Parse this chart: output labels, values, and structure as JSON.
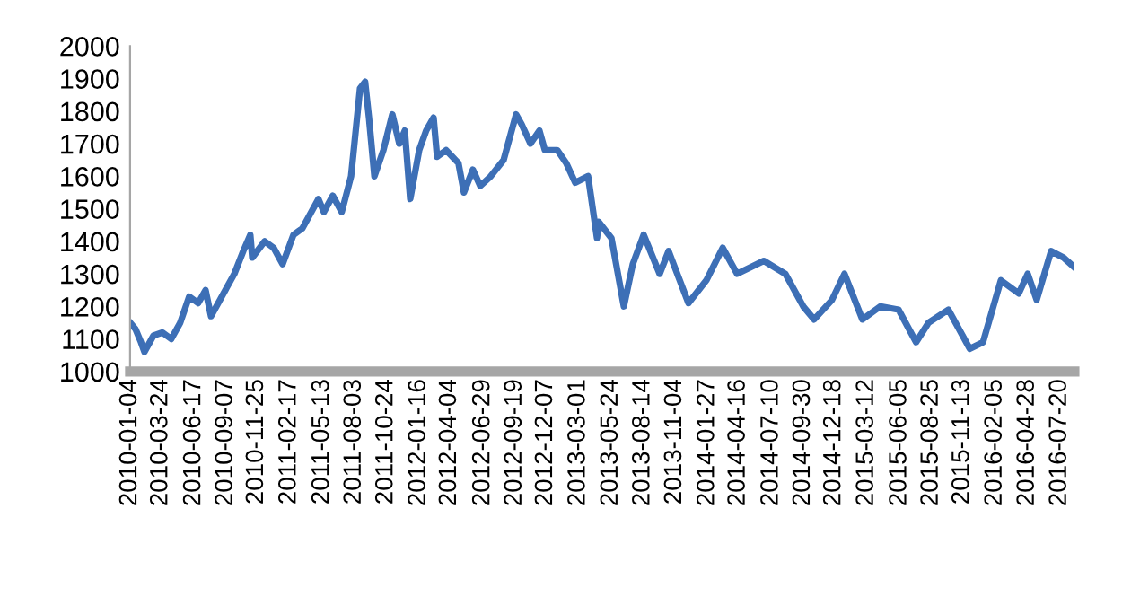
{
  "chart_data": {
    "type": "line",
    "x": [
      "2010-01-04",
      "2010-01-18",
      "2010-02-01",
      "2010-02-10",
      "2010-03-05",
      "2010-03-28",
      "2010-04-20",
      "2010-05-13",
      "2010-06-05",
      "2010-06-28",
      "2010-07-17",
      "2010-07-31",
      "2010-09-29",
      "2010-10-22",
      "2010-11-09",
      "2010-11-14",
      "2010-12-16",
      "2011-01-08",
      "2011-01-31",
      "2011-02-28",
      "2011-03-23",
      "2011-05-03",
      "2011-05-17",
      "2011-06-09",
      "2011-07-02",
      "2011-07-26",
      "2011-08-18",
      "2011-08-31",
      "2011-09-10",
      "2011-09-24",
      "2011-10-17",
      "2011-11-09",
      "2011-11-27",
      "2011-12-11",
      "2011-12-25",
      "2012-01-17",
      "2012-02-04",
      "2012-02-23",
      "2012-03-03",
      "2012-03-26",
      "2012-04-27",
      "2012-05-11",
      "2012-06-03",
      "2012-06-22",
      "2012-07-19",
      "2012-08-21",
      "2012-09-22",
      "2012-10-06",
      "2012-10-29",
      "2012-11-21",
      "2012-12-05",
      "2013-01-06",
      "2013-01-29",
      "2013-02-21",
      "2013-03-26",
      "2013-04-18",
      "2013-04-22",
      "2013-05-25",
      "2013-06-26",
      "2013-07-19",
      "2013-08-16",
      "2013-09-26",
      "2013-10-19",
      "2013-12-09",
      "2014-01-24",
      "2014-03-07",
      "2014-04-13",
      "2014-06-21",
      "2014-08-15",
      "2014-09-30",
      "2014-10-28",
      "2014-12-13",
      "2015-01-14",
      "2015-03-01",
      "2015-04-16",
      "2015-06-02",
      "2015-07-17",
      "2015-08-18",
      "2015-10-08",
      "2015-12-02",
      "2016-01-05",
      "2016-02-20",
      "2016-04-06",
      "2016-04-29",
      "2016-05-22",
      "2016-06-28",
      "2016-07-30",
      "2016-08-27"
    ],
    "values": [
      1150,
      1130,
      1090,
      1060,
      1110,
      1120,
      1100,
      1150,
      1230,
      1210,
      1250,
      1170,
      1300,
      1370,
      1420,
      1350,
      1400,
      1380,
      1330,
      1420,
      1440,
      1530,
      1490,
      1540,
      1490,
      1600,
      1870,
      1890,
      1780,
      1600,
      1680,
      1790,
      1700,
      1740,
      1530,
      1680,
      1740,
      1780,
      1660,
      1680,
      1640,
      1550,
      1620,
      1570,
      1600,
      1650,
      1790,
      1760,
      1700,
      1740,
      1680,
      1680,
      1640,
      1580,
      1600,
      1410,
      1460,
      1410,
      1200,
      1330,
      1420,
      1300,
      1370,
      1210,
      1280,
      1380,
      1300,
      1340,
      1300,
      1200,
      1160,
      1220,
      1300,
      1160,
      1200,
      1190,
      1090,
      1150,
      1190,
      1070,
      1090,
      1280,
      1240,
      1300,
      1220,
      1370,
      1350,
      1320
    ],
    "color": "#3d6fb6",
    "xlim": [
      "2010-01-04",
      "2016-08-27"
    ],
    "xticks": [
      "2010-01-04",
      "2010-03-24",
      "2010-06-17",
      "2010-09-07",
      "2010-11-25",
      "2011-02-17",
      "2011-05-13",
      "2011-08-03",
      "2011-10-24",
      "2012-01-16",
      "2012-04-04",
      "2012-06-29",
      "2012-09-19",
      "2012-12-07",
      "2013-03-01",
      "2013-05-24",
      "2013-08-14",
      "2013-11-04",
      "2014-01-27",
      "2014-04-16",
      "2014-07-10",
      "2014-09-30",
      "2014-12-18",
      "2015-03-12",
      "2015-06-05",
      "2015-08-25",
      "2015-11-13",
      "2016-02-05",
      "2016-04-28",
      "2016-07-20"
    ],
    "ylim": [
      1000,
      2000
    ],
    "yticks": [
      1000,
      1100,
      1200,
      1300,
      1400,
      1500,
      1600,
      1700,
      1800,
      1900,
      2000
    ],
    "grid": false,
    "legend": false,
    "marker": "none",
    "line_style": "solid"
  }
}
